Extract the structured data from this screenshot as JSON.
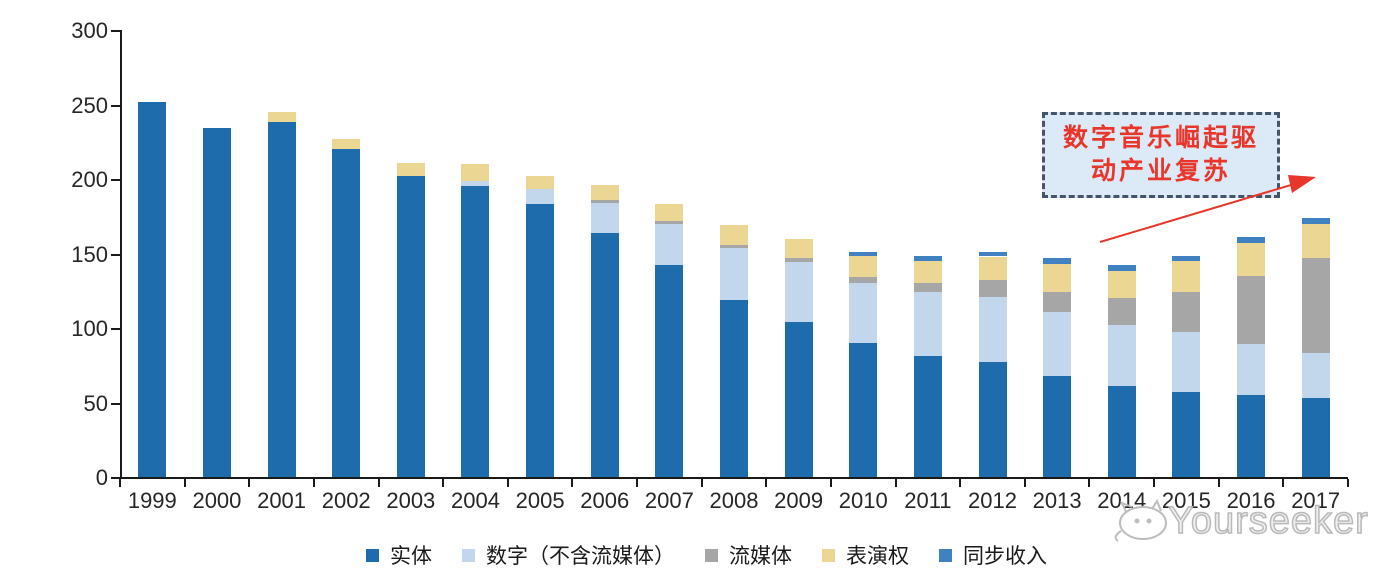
{
  "chart_data": {
    "type": "bar",
    "stacked": true,
    "grid": false,
    "legend_position": "bottom",
    "ylim": [
      0,
      300
    ],
    "yticks": [
      0,
      50,
      100,
      150,
      200,
      250,
      300
    ],
    "categories": [
      "1999",
      "2000",
      "2001",
      "2002",
      "2003",
      "2004",
      "2005",
      "2006",
      "2007",
      "2008",
      "2009",
      "2010",
      "2011",
      "2012",
      "2013",
      "2014",
      "2015",
      "2016",
      "2017"
    ],
    "series": [
      {
        "id": "physical",
        "name": "实体",
        "color": "#1f6cad",
        "values": [
          252,
          234,
          238,
          220,
          202,
          195,
          183,
          164,
          142,
          119,
          104,
          90,
          81,
          77,
          68,
          61,
          57,
          55,
          53
        ]
      },
      {
        "id": "digital",
        "name": "数字（不含流媒体）",
        "color": "#c3d7ec",
        "values": [
          0,
          0,
          0,
          0,
          0,
          4,
          10,
          20,
          28,
          35,
          40,
          40,
          43,
          44,
          43,
          41,
          40,
          34,
          30
        ]
      },
      {
        "id": "streaming",
        "name": "流媒体",
        "color": "#a6a6a6",
        "values": [
          0,
          0,
          0,
          0,
          0,
          0,
          0,
          2,
          2,
          2,
          3,
          4,
          6,
          11,
          13,
          18,
          27,
          46,
          64
        ]
      },
      {
        "id": "performance",
        "name": "表演权",
        "color": "#ecd694",
        "values": [
          0,
          0,
          7,
          7,
          9,
          11,
          9,
          10,
          11,
          13,
          13,
          14,
          15,
          16,
          19,
          18,
          21,
          22,
          23
        ]
      },
      {
        "id": "sync",
        "name": "同步收入",
        "color": "#3f81c1",
        "values": [
          0,
          0,
          0,
          0,
          0,
          0,
          0,
          0,
          0,
          0,
          0,
          3,
          3,
          3,
          4,
          4,
          3,
          4,
          4
        ]
      }
    ]
  },
  "annotation": {
    "line1": "数字音乐崛起驱",
    "line2": "动产业复苏",
    "text_color": "#e8362b",
    "border_color": "#44546a",
    "fill_color": "#dce9f6",
    "arrow_color": "#e8362b"
  },
  "watermark": {
    "text": "Yourseeker"
  },
  "colors": {
    "axis": "#1a1a1a",
    "background": "#ffffff"
  }
}
